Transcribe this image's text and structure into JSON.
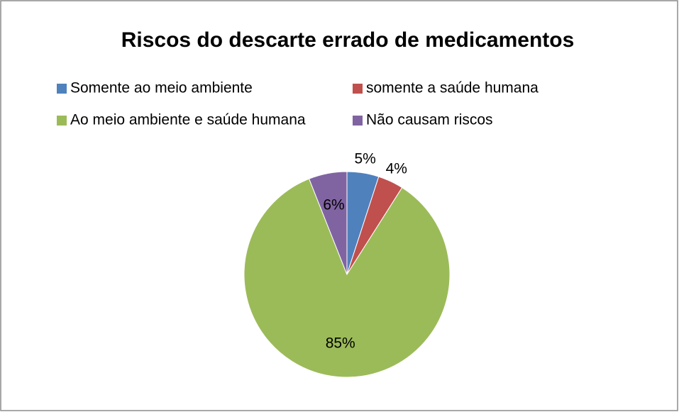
{
  "chart_data": {
    "type": "pie",
    "title": "Riscos do descarte errado de medicamentos",
    "categories": [
      "Somente ao meio ambiente",
      "somente a saúde humana",
      "Ao meio ambiente e saúde humana",
      "Não causam riscos"
    ],
    "values": [
      5,
      4,
      85,
      6
    ],
    "value_labels": [
      "5%",
      "4%",
      "85%",
      "6%"
    ],
    "colors": [
      "#4f81bd",
      "#c0504d",
      "#9bbb59",
      "#8064a2"
    ],
    "legend": "top"
  }
}
